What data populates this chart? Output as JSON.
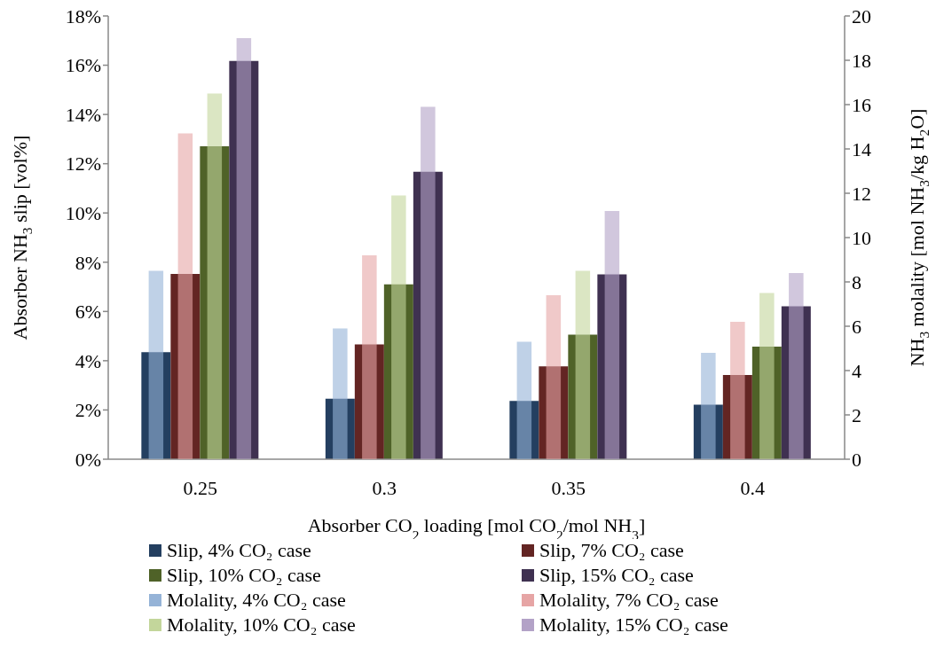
{
  "chart_data": {
    "type": "bar",
    "xlabel": "Absorber CO$_{2}$ loading [mol CO$_{2}$/mol NH$_{3}$]",
    "ylabel": "Absorber NH$_{3}$ slip [vol%]",
    "y2label": "NH$_{3}$ molality [mol NH$_{3}$/kg H$_{2}$O]",
    "categories": [
      "0.25",
      "0.3",
      "0.35",
      "0.4"
    ],
    "ylim": [
      0,
      18
    ],
    "yticks": [
      {
        "value": 0,
        "label": "0%"
      },
      {
        "value": 2,
        "label": "2%"
      },
      {
        "value": 4,
        "label": "4%"
      },
      {
        "value": 6,
        "label": "6%"
      },
      {
        "value": 8,
        "label": "8%"
      },
      {
        "value": 10,
        "label": "10%"
      },
      {
        "value": 12,
        "label": "12%"
      },
      {
        "value": 14,
        "label": "14%"
      },
      {
        "value": 16,
        "label": "16%"
      },
      {
        "value": 18,
        "label": "18%"
      }
    ],
    "y2lim": [
      0,
      20
    ],
    "y2ticks": [
      0,
      2,
      4,
      6,
      8,
      10,
      12,
      14,
      16,
      18,
      20
    ],
    "legend": "bottom",
    "series": [
      {
        "name": "Slip, 4% CO₂ case",
        "color": "#243f60",
        "values": [
          4.35,
          2.46,
          2.37,
          2.21
        ]
      },
      {
        "name": "Slip, 7% CO₂ case",
        "color": "#632523",
        "values": [
          7.52,
          4.66,
          3.77,
          3.42
        ]
      },
      {
        "name": "Slip, 10% CO₂ case",
        "color": "#4f6228",
        "values": [
          12.71,
          7.1,
          5.06,
          4.57
        ]
      },
      {
        "name": "Slip, 15% CO₂ case",
        "color": "#3f3151",
        "values": [
          16.17,
          11.67,
          7.51,
          6.21
        ]
      },
      {
        "name": "Molality, 4% CO₂ case",
        "color": "#95b3d7",
        "axis": "y2",
        "values": [
          8.5,
          5.9,
          5.3,
          4.8
        ]
      },
      {
        "name": "Molality, 7% CO₂ case",
        "color": "#e6a5a5",
        "axis": "y2",
        "values": [
          14.7,
          9.2,
          7.4,
          6.2
        ]
      },
      {
        "name": "Molality, 10% CO₂ case",
        "color": "#c3d69b",
        "axis": "y2",
        "values": [
          16.5,
          11.9,
          8.5,
          7.5
        ]
      },
      {
        "name": "Molality, 15% CO₂ case",
        "color": "#b3a2c7",
        "axis": "y2",
        "values": [
          19.0,
          15.9,
          11.2,
          8.4
        ]
      }
    ]
  }
}
